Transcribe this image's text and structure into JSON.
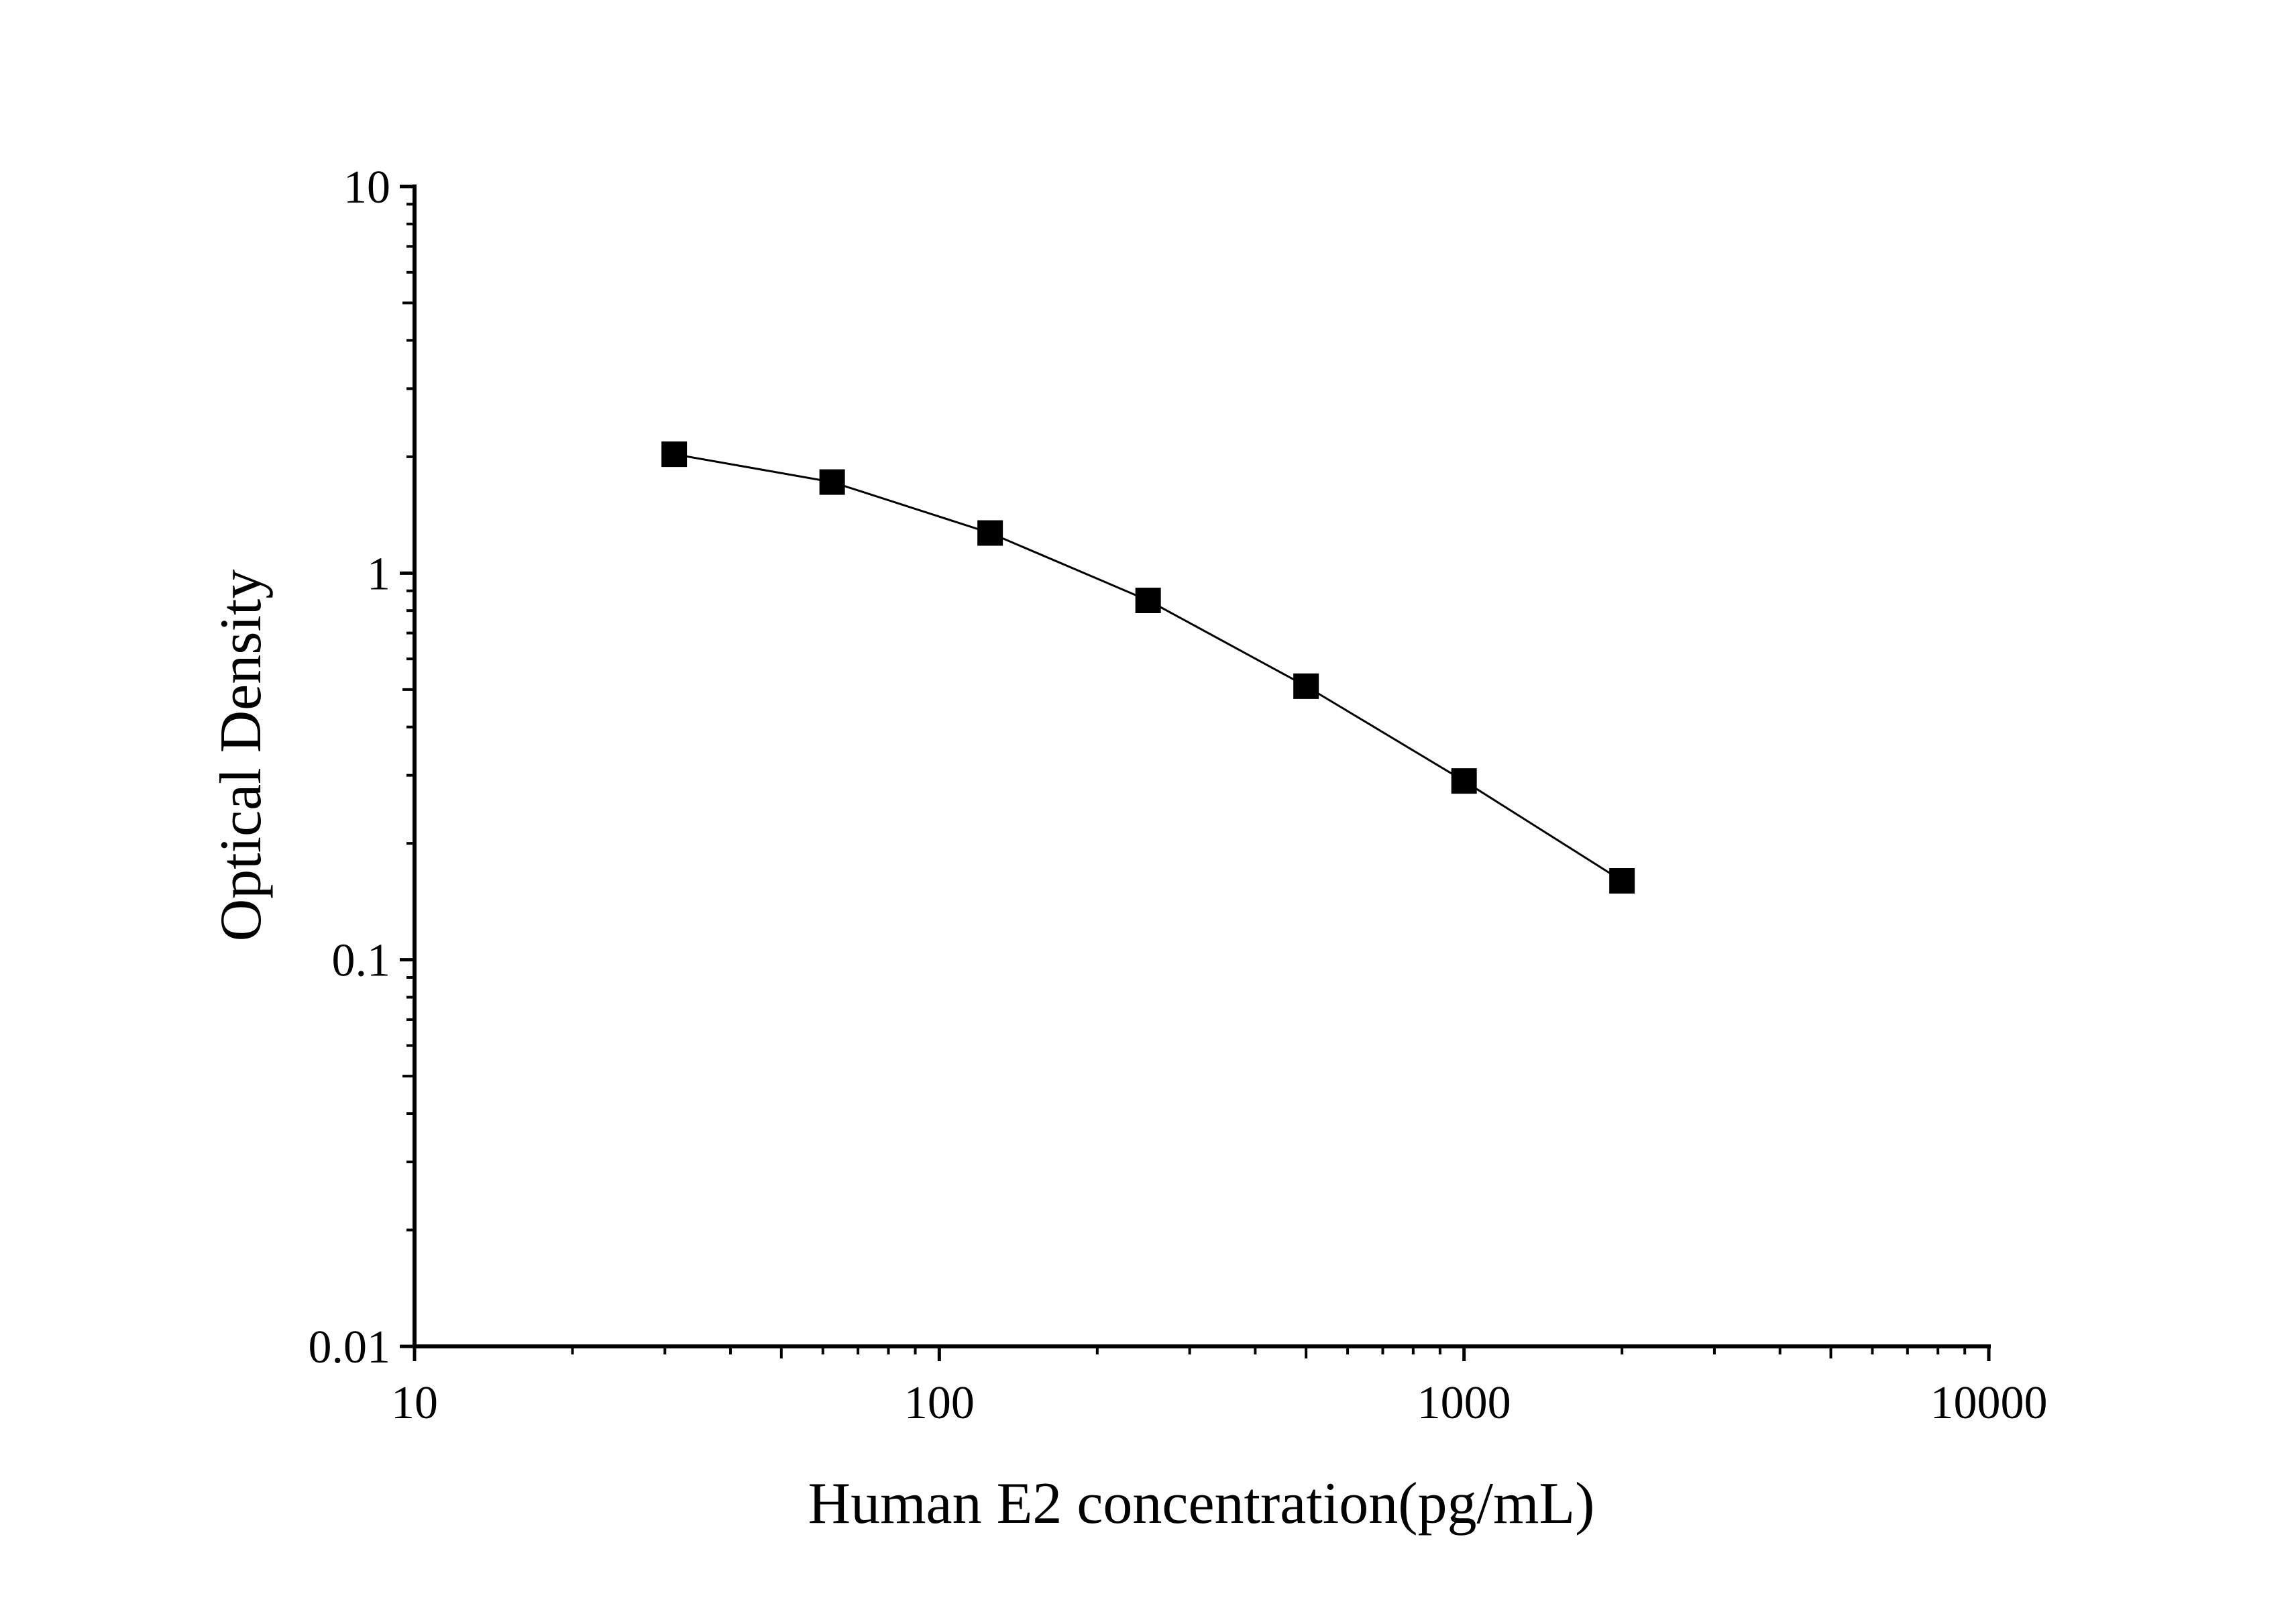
{
  "chart_data": {
    "type": "line",
    "title": "",
    "xlabel": "Human E2 concentration(pg/mL)",
    "ylabel": "Optical Density",
    "xscale": "log",
    "yscale": "log",
    "xlim": [
      10,
      10000
    ],
    "ylim": [
      0.01,
      10
    ],
    "x_tick_labels": [
      "10",
      "100",
      "1000",
      "10000"
    ],
    "y_tick_labels": [
      "0.01",
      "0.1",
      "1",
      "10"
    ],
    "grid": false,
    "legend": "none",
    "marker": "square",
    "color": "#000000",
    "series": [
      {
        "x": [
          31.25,
          62.5,
          125,
          250,
          500,
          1000,
          2000
        ],
        "y": [
          2.03,
          1.72,
          1.27,
          0.85,
          0.51,
          0.29,
          0.16
        ]
      }
    ]
  }
}
